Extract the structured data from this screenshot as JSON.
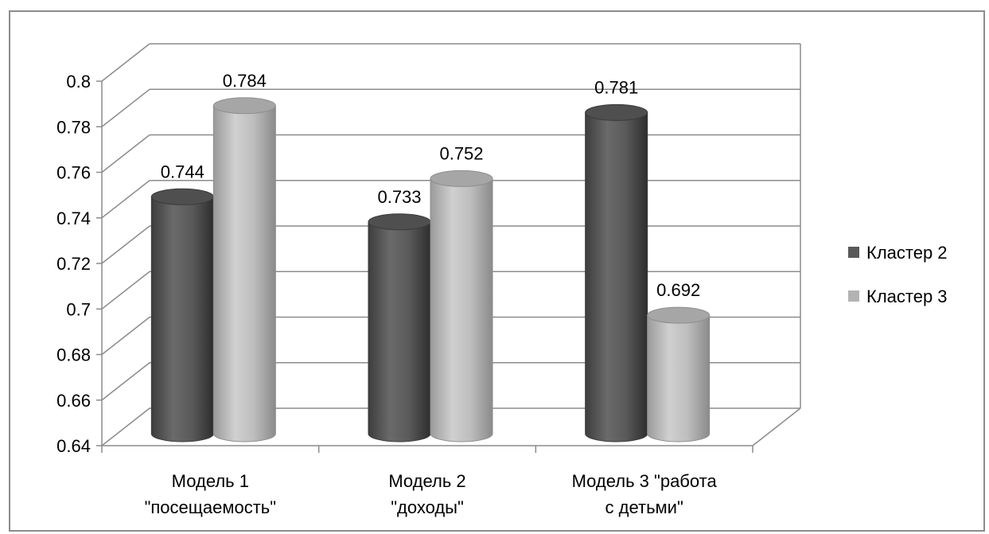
{
  "chart_data": {
    "type": "bar",
    "style": "3d-cylinder",
    "categories": [
      [
        "Модель 1",
        "\"посещаемость\""
      ],
      [
        "Модель 2",
        "\"доходы\""
      ],
      [
        "Модель 3 \"работа",
        "с детьми\""
      ]
    ],
    "series": [
      {
        "name": "Кластер 2",
        "values": [
          0.744,
          0.733,
          0.781
        ],
        "color": "#595959"
      },
      {
        "name": "Кластер 3",
        "values": [
          0.784,
          0.752,
          0.692
        ],
        "color": "#b3b3b3"
      }
    ],
    "data_labels": [
      [
        "0.744",
        "0.733",
        "0.781"
      ],
      [
        "0.784",
        "0.752",
        "0.692"
      ]
    ],
    "y_ticks": [
      "0.64",
      "0.66",
      "0.68",
      "0.7",
      "0.72",
      "0.74",
      "0.76",
      "0.78",
      "0.8"
    ],
    "ylim": [
      0.64,
      0.8
    ],
    "title": "",
    "xlabel": "",
    "ylabel": "",
    "grid": true,
    "legend_position": "right"
  }
}
